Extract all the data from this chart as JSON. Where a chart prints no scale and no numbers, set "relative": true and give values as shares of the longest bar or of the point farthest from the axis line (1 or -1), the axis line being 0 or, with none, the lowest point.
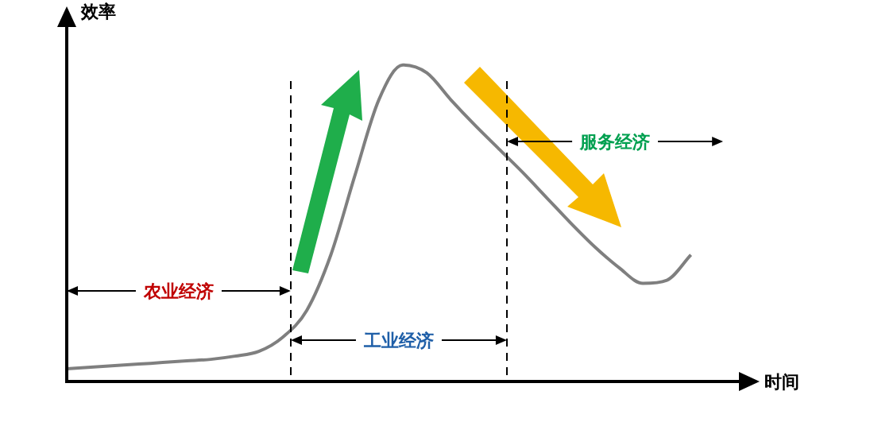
{
  "chart_data": {
    "type": "line",
    "relative": true,
    "xlabel": "时间",
    "ylabel": "效率",
    "categories": [
      null,
      null,
      null,
      null,
      null,
      null,
      null,
      null,
      null,
      null,
      null,
      null,
      null,
      null,
      null,
      null,
      null,
      null,
      null,
      null,
      null,
      null,
      null,
      null,
      null,
      null,
      null,
      null,
      null
    ],
    "series": [
      {
        "color": "#7f7f7f",
        "values": [
          0.04,
          0.045,
          0.05,
          0.055,
          0.06,
          0.065,
          0.07,
          0.08,
          0.095,
          0.14,
          0.225,
          0.4,
          0.65,
          0.89,
          1.0,
          0.975,
          0.89,
          0.81,
          0.735,
          0.66,
          0.58,
          0.5,
          0.425,
          0.36,
          0.31,
          0.32,
          0.4,
          null,
          null
        ]
      }
    ],
    "annotations": [
      "农业经济",
      "工业经济",
      "服务经济"
    ],
    "marker": "none",
    "line_style": "solid",
    "legend": false
  }
}
